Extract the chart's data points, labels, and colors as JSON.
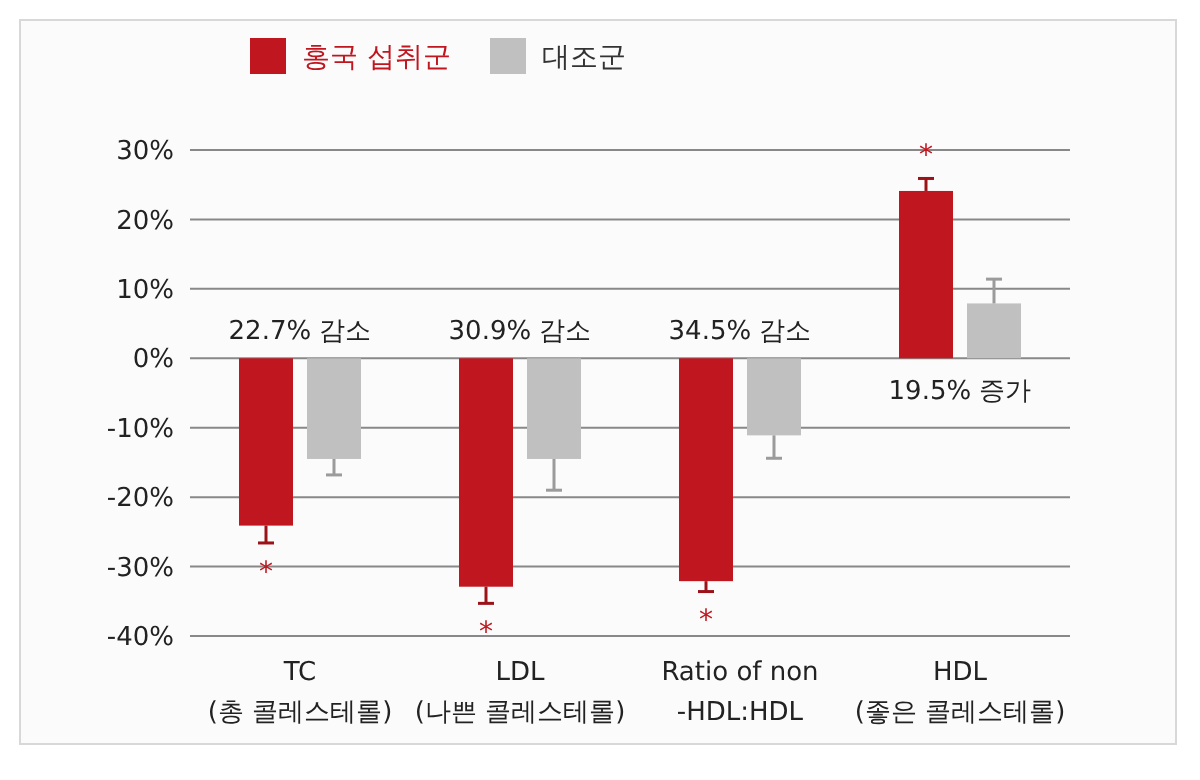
{
  "chart_data": {
    "type": "bar",
    "categories": [
      "TC\n(총 콜레스테롤)",
      "LDL\n(나쁜 콜레스테롤)",
      "Ratio of non\n-HDL:HDL",
      "HDL\n(좋은 콜레스테롤)"
    ],
    "series": [
      {
        "name": "홍국 섭취군",
        "color": "#c0161f",
        "values": [
          -24.1,
          -32.9,
          -32.1,
          24.1
        ],
        "errors": [
          2.5,
          2.4,
          1.5,
          1.8
        ]
      },
      {
        "name": "대조군",
        "color": "#c0c0c0",
        "values": [
          -14.5,
          -14.5,
          -11.1,
          7.9
        ],
        "errors": [
          2.3,
          4.5,
          3.3,
          3.5
        ]
      }
    ],
    "ylim": [
      -40,
      30
    ],
    "yticks": [
      {
        "value": -40,
        "label": "-40%"
      },
      {
        "value": -30,
        "label": "-30%"
      },
      {
        "value": -20,
        "label": "-20%"
      },
      {
        "value": -10,
        "label": "-10%"
      },
      {
        "value": 0,
        "label": "0%"
      },
      {
        "value": 10,
        "label": "10%"
      },
      {
        "value": 20,
        "label": "20%"
      },
      {
        "value": 30,
        "label": "30%"
      }
    ],
    "grid": "y",
    "legend": "top left",
    "annotations": [
      "22.7% 감소",
      "30.9% 감소",
      "34.5% 감소",
      "19.5% 증가",
      "*",
      "*",
      "*",
      "*"
    ]
  }
}
